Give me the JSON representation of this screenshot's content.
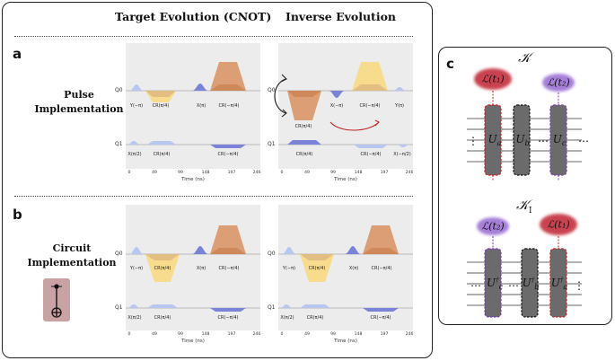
{
  "panels": {
    "a": "a",
    "b": "b",
    "c": "c"
  },
  "columns": {
    "target": "Target Evolution (CNOT)",
    "inverse": "Inverse Evolution"
  },
  "rows": {
    "pulse": [
      "Pulse",
      "Implementation"
    ],
    "circuit": [
      "Circuit",
      "Implementation"
    ]
  },
  "plot_common": {
    "q0": "Q0",
    "q1": "Q1",
    "time_label": "Time (ns)",
    "ticks": [
      "0",
      "49",
      "99",
      "148",
      "197",
      "246"
    ]
  },
  "plot_gates": {
    "target_q0": [
      "Y(−π)",
      "CR(π/4)",
      "X(π)",
      "CR(−π/4)"
    ],
    "target_q1": [
      "X(π/2)",
      "CR(π/4)",
      "CR(−π/4)"
    ],
    "inverse_pulse_q0": [
      "CR(π/4)",
      "X(−π)",
      "CR(−π/4)",
      "Y(π)"
    ],
    "inverse_pulse_q1": [
      "CR(π/4)",
      "CR(−π/4)",
      "X(−π/2)"
    ],
    "inverse_circuit_q0": [
      "Y(−π)",
      "CR(π/4)",
      "X(π)",
      "CR(−π/4)"
    ],
    "inverse_circuit_q1": [
      "X(π/2)",
      "CR(π/4)",
      "CR(−π/4)"
    ]
  },
  "panel_c": {
    "k_label": "𝒦",
    "ki_label": "𝒦",
    "ki_sub": "I",
    "clouds_top": [
      "ℒ(t₁)",
      "ℒ(t₂)"
    ],
    "clouds_bottom": [
      "ℒ(t₂)",
      "ℒ(t₁)"
    ],
    "u_top": [
      "U",
      "U",
      "U"
    ],
    "u_top_sub": [
      "a",
      "b",
      "c"
    ],
    "u_bottom": [
      "U",
      "U",
      "U"
    ],
    "u_bottom_sub": [
      "c",
      "b",
      "a"
    ],
    "dagger": "†",
    "ellipsis": "⋯",
    "vellipsis": "⋮"
  },
  "colors": {
    "orange": "#d9915f",
    "yellow": "#f7dc8e",
    "blue": "#7b83d9",
    "lightblue": "#b8c7f0",
    "cloud_red": "#c9434f",
    "cloud_purple": "#a57fd8",
    "block": "#6b6b6b",
    "dash_red": "#cc1f1f",
    "dash_purple": "#7a3db8"
  }
}
